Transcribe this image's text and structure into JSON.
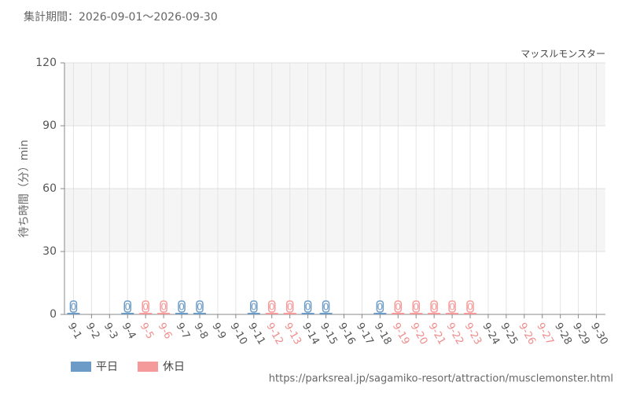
{
  "chart_data": {
    "type": "bar",
    "title": "集計期間：2026-09-01～2026-09-30",
    "subtitle": "マッスルモンスター",
    "y_label": "待ち時間（分）min",
    "source": "https://parksreal.jp/sagamiko-resort/attraction/musclemonster.html",
    "categories": [
      "9-1",
      "9-2",
      "9-3",
      "9-4",
      "9-5",
      "9-6",
      "9-7",
      "9-8",
      "9-9",
      "9-10",
      "9-11",
      "9-12",
      "9-13",
      "9-14",
      "9-15",
      "9-16",
      "9-17",
      "9-18",
      "9-19",
      "9-20",
      "9-21",
      "9-22",
      "9-23",
      "9-24",
      "9-25",
      "9-26",
      "9-27",
      "9-28",
      "9-29",
      "9-30"
    ],
    "category_colors": [
      "#555",
      "#555",
      "#555",
      "#555",
      "#f08c8c",
      "#f08c8c",
      "#555",
      "#555",
      "#555",
      "#555",
      "#555",
      "#f08c8c",
      "#f08c8c",
      "#555",
      "#555",
      "#555",
      "#555",
      "#555",
      "#f08c8c",
      "#f08c8c",
      "#f08c8c",
      "#f08c8c",
      "#f08c8c",
      "#555",
      "#555",
      "#f08c8c",
      "#f08c8c",
      "#555",
      "#555",
      "#555"
    ],
    "series": [
      {
        "name": "平日",
        "color": "#6b9bc6",
        "values": [
          0,
          null,
          null,
          0,
          null,
          null,
          0,
          0,
          null,
          null,
          0,
          null,
          null,
          0,
          0,
          null,
          null,
          0,
          null,
          null,
          null,
          null,
          null,
          null,
          null,
          null,
          null,
          null,
          null,
          null
        ]
      },
      {
        "name": "休日",
        "color": "#f59a9a",
        "values": [
          null,
          null,
          null,
          null,
          0,
          0,
          null,
          null,
          null,
          null,
          null,
          0,
          0,
          null,
          null,
          null,
          null,
          null,
          0,
          0,
          0,
          0,
          0,
          null,
          null,
          null,
          null,
          null,
          null,
          null
        ]
      }
    ],
    "ylim": [
      0,
      120
    ],
    "yticks": [
      0,
      30,
      60,
      90,
      120
    ],
    "grid": true
  }
}
